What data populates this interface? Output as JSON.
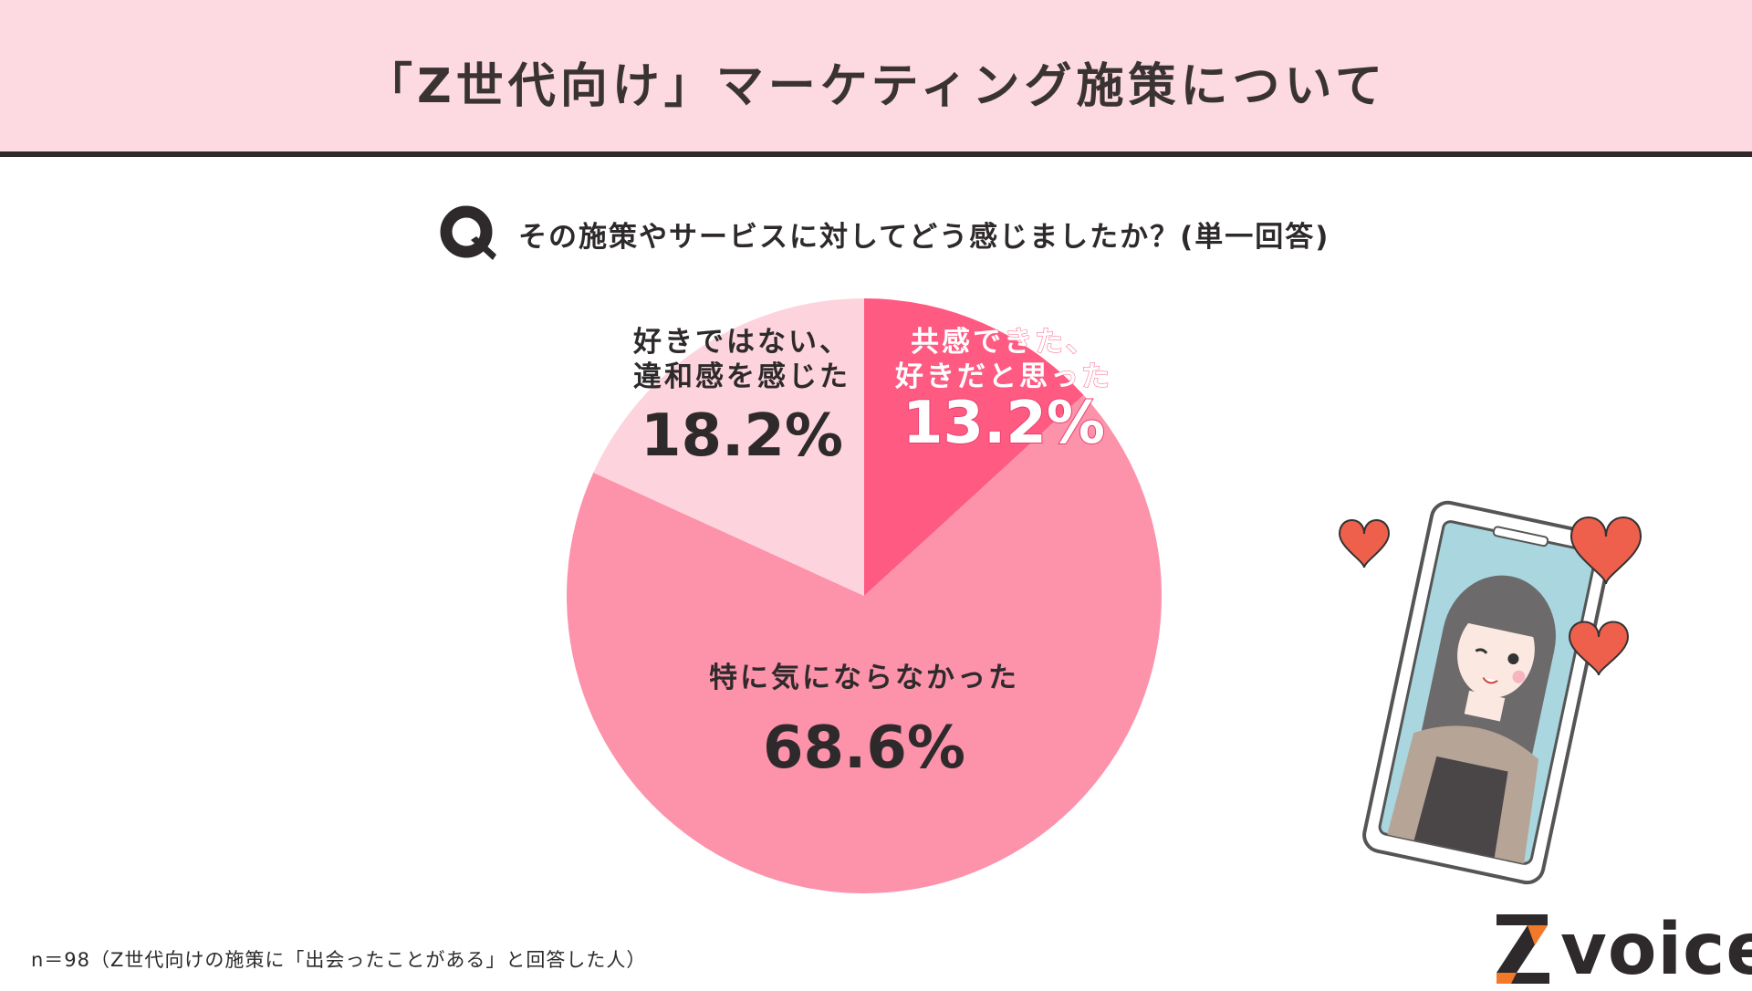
{
  "header": {
    "title": "「Z世代向け」マーケティング施策について"
  },
  "question": {
    "icon": "q-icon",
    "text": "その施策やサービスに対してどう感じましたか？(単一回答)"
  },
  "chart_data": {
    "type": "pie",
    "start": "12 o'clock, clockwise",
    "slices": [
      {
        "label_lines": [
          "共感できた、",
          "好きだと思った"
        ],
        "value": 13.2,
        "value_text": "13.2%",
        "color": "#fe5a82",
        "text_color": "#ffffff"
      },
      {
        "label_lines": [
          "特に気にならなかった"
        ],
        "value": 68.6,
        "value_text": "68.6%",
        "color": "#fd92ab",
        "text_color": "#2e2a2b"
      },
      {
        "label_lines": [
          "好きではない、",
          "違和感を感じた"
        ],
        "value": 18.2,
        "value_text": "18.2%",
        "color": "#fdd3de",
        "text_color": "#2e2a2b"
      }
    ]
  },
  "note": "n＝98（Z世代向けの施策に「出会ったことがある」と回答した人）",
  "logo": {
    "text": "voice",
    "accent": "#f2792a"
  },
  "colors": {
    "header_bg": "#fdd9e1",
    "border": "#2e2a2b",
    "heart": "#ee5f4c"
  }
}
